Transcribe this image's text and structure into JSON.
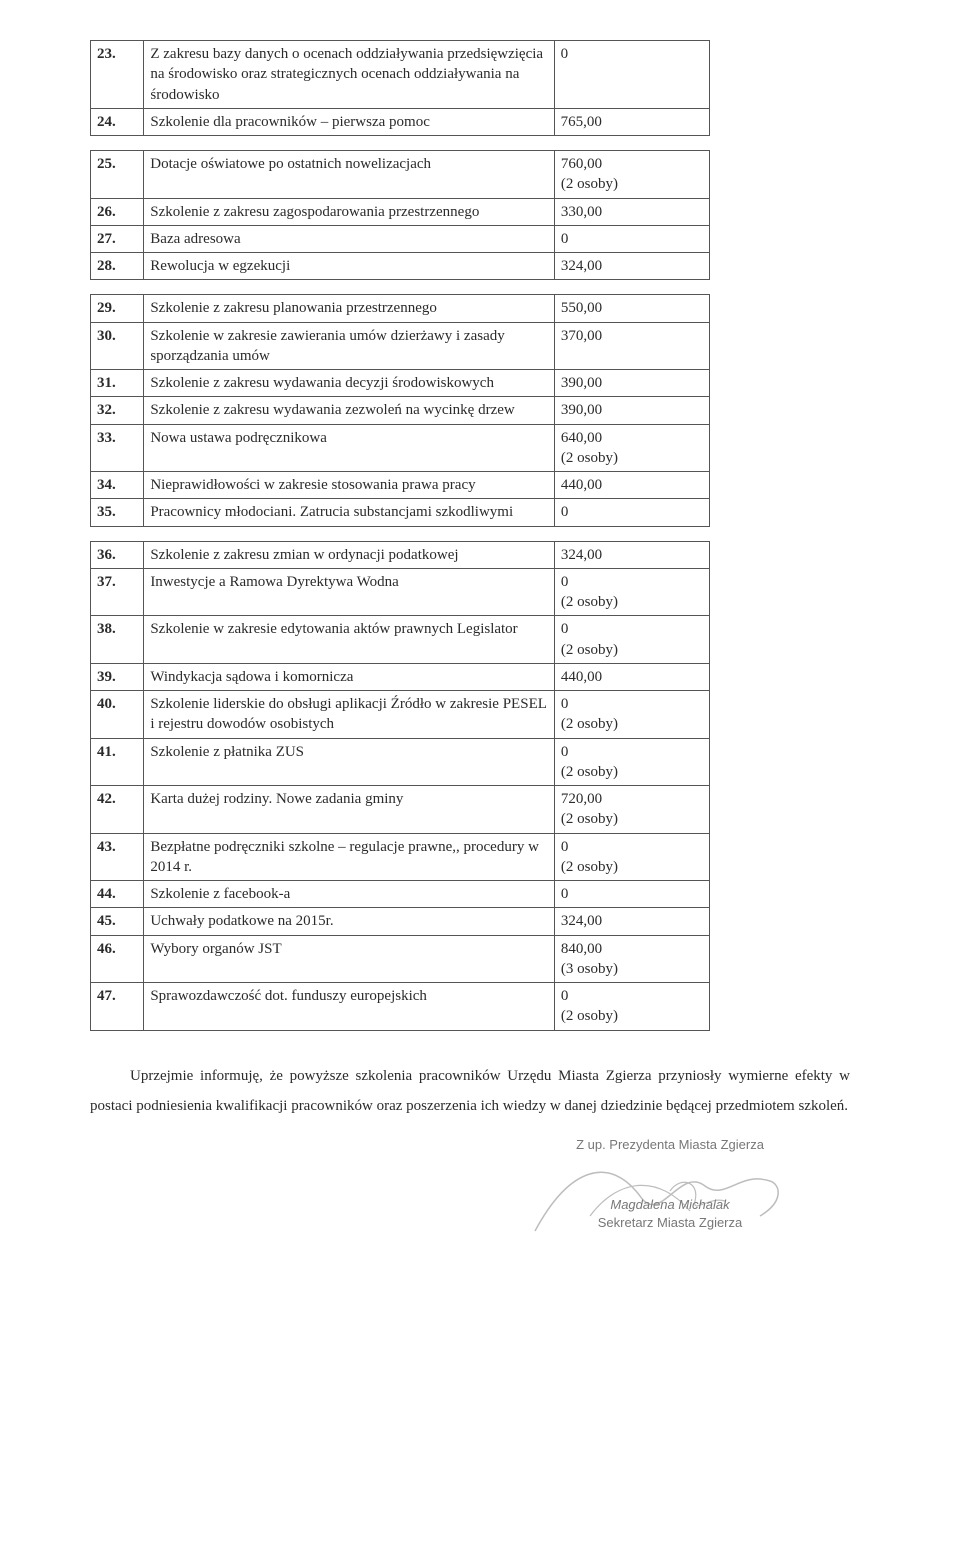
{
  "groups": [
    {
      "rows": [
        {
          "n": "23.",
          "desc": "Z zakresu bazy danych o ocenach oddziaływania przedsięwzięcia na środowisko oraz strategicznych ocenach oddziaływania na środowisko",
          "val": "0"
        },
        {
          "n": "24.",
          "desc": "Szkolenie dla pracowników – pierwsza pomoc",
          "val": "765,00"
        }
      ]
    },
    {
      "rows": [
        {
          "n": "25.",
          "desc": "Dotacje oświatowe po ostatnich nowelizacjach",
          "val": "760,00\n(2 osoby)"
        },
        {
          "n": "26.",
          "desc": "Szkolenie z zakresu zagospodarowania przestrzennego",
          "val": "330,00"
        },
        {
          "n": "27.",
          "desc": "Baza adresowa",
          "val": "0"
        },
        {
          "n": "28.",
          "desc": "Rewolucja w egzekucji",
          "val": "324,00"
        }
      ]
    },
    {
      "rows": [
        {
          "n": "29.",
          "desc": "Szkolenie z zakresu planowania przestrzennego",
          "val": "550,00"
        },
        {
          "n": "30.",
          "desc": "Szkolenie w zakresie zawierania umów dzierżawy i zasady sporządzania umów",
          "val": "370,00"
        },
        {
          "n": "31.",
          "desc": "Szkolenie z zakresu wydawania decyzji środowiskowych",
          "val": "390,00"
        },
        {
          "n": "32.",
          "desc": "Szkolenie z zakresu wydawania zezwoleń na wycinkę drzew",
          "val": "390,00"
        },
        {
          "n": "33.",
          "desc": "Nowa ustawa podręcznikowa",
          "val": "640,00\n(2 osoby)"
        },
        {
          "n": "34.",
          "desc": "Nieprawidłowości w zakresie stosowania prawa pracy",
          "val": "440,00"
        },
        {
          "n": "35.",
          "desc": "Pracownicy młodociani. Zatrucia substancjami szkodliwymi",
          "val": "0"
        }
      ]
    },
    {
      "rows": [
        {
          "n": "36.",
          "desc": "Szkolenie z zakresu zmian w ordynacji podatkowej",
          "val": "324,00"
        },
        {
          "n": "37.",
          "desc": "Inwestycje a Ramowa Dyrektywa Wodna",
          "val": "0\n(2 osoby)"
        },
        {
          "n": "38.",
          "desc": "Szkolenie w zakresie edytowania aktów prawnych  Legislator",
          "val": "0\n(2 osoby)"
        },
        {
          "n": "39.",
          "desc": "Windykacja sądowa i komornicza",
          "val": "440,00"
        },
        {
          "n": "40.",
          "desc": "Szkolenie liderskie do obsługi aplikacji Źródło w zakresie PESEL i rejestru dowodów osobistych",
          "val": "0\n(2 osoby)"
        },
        {
          "n": "41.",
          "desc": "Szkolenie z płatnika ZUS",
          "val": "0\n(2 osoby)"
        },
        {
          "n": "42.",
          "desc": "Karta dużej rodziny. Nowe zadania gminy",
          "val": "720,00\n(2 osoby)"
        },
        {
          "n": "43.",
          "desc": "Bezpłatne podręczniki szkolne – regulacje prawne,, procedury w 2014 r.",
          "val": "0\n(2 osoby)"
        },
        {
          "n": "44.",
          "desc": "Szkolenie z facebook-a",
          "val": "0"
        },
        {
          "n": "45.",
          "desc": "Uchwały podatkowe na 2015r.",
          "val": "324,00"
        },
        {
          "n": "46.",
          "desc": "Wybory organów JST",
          "val": "840,00\n(3 osoby)"
        },
        {
          "n": "47.",
          "desc": "Sprawozdawczość dot. funduszy europejskich",
          "val": "0\n(2 osoby)"
        }
      ]
    }
  ],
  "closing": "Uprzejmie informuję, że powyższe szkolenia pracowników Urzędu Miasta Zgierza przyniosły wymierne efekty w postaci podniesienia kwalifikacji pracowników oraz poszerzenia ich wiedzy w danej dziedzinie będącej przedmiotem szkoleń.",
  "signature": {
    "line1": "Z up. Prezydenta Miasta Zgierza",
    "line2": "Magdalena Michalak",
    "line3": "Sekretarz Miasta Zgierza"
  }
}
